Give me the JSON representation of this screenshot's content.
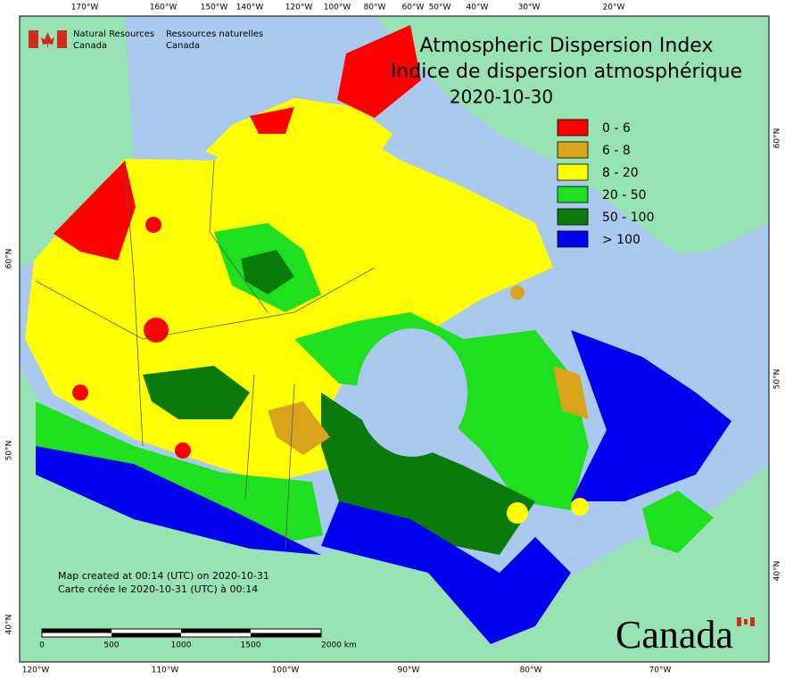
{
  "header": {
    "agency_en": "Natural Resources",
    "agency_en_2": "Canada",
    "agency_fr": "Ressources naturelles",
    "agency_fr_2": "Canada"
  },
  "title": {
    "line1": "Atmospheric Dispersion Index",
    "line2": "Indice de dispersion atmosphérique",
    "date": "2020-10-30"
  },
  "legend": [
    {
      "label": "0 - 6",
      "color": "#ff0000"
    },
    {
      "label": "6 - 8",
      "color": "#d9a31a"
    },
    {
      "label": "8 - 20",
      "color": "#ffff00"
    },
    {
      "label": "20 - 50",
      "color": "#1ee01e"
    },
    {
      "label": "50 - 100",
      "color": "#0a7a0a"
    },
    {
      "label": "> 100",
      "color": "#0000f0"
    }
  ],
  "graticule": {
    "top": [
      "170°W",
      "160°W",
      "150°W",
      "140°W",
      "120°W",
      "100°W",
      "80°W",
      "60°W",
      "50°W",
      "40°W",
      "30°W",
      "20°W"
    ],
    "bottom": [
      "120°W",
      "110°W",
      "100°W",
      "90°W",
      "80°W",
      "70°W"
    ],
    "left": [
      "60°N",
      "50°N",
      "40°N"
    ],
    "right": [
      "60°N",
      "50°N",
      "40°N"
    ]
  },
  "notes": [
    "Map created at 00:14 (UTC) on 2020-10-31",
    "Carte créée le 2020-10-31 (UTC) à 00:14"
  ],
  "scale_bar": [
    "0",
    "500",
    "1000",
    "1500",
    "2000 km"
  ],
  "wordmark": "Canada"
}
